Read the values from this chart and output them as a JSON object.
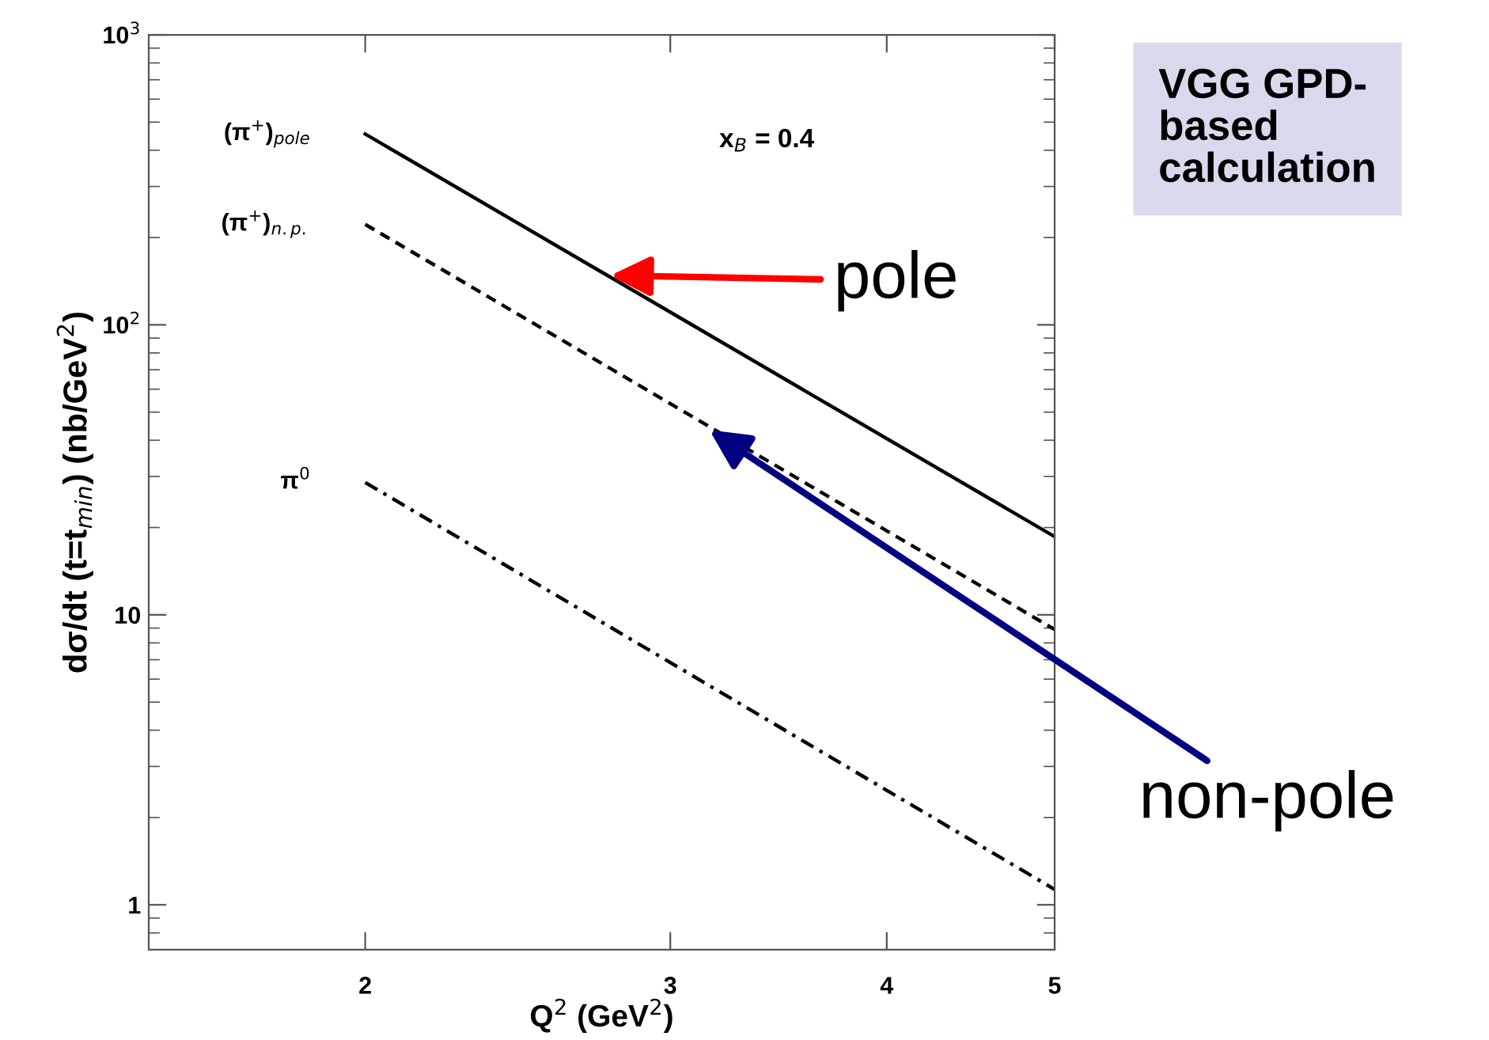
{
  "chart_data": {
    "type": "line",
    "xlabel": "Q$^{2}$ (GeV$^{2}$)",
    "ylabel": "dσ/dt (t=t$_{min}$) (nb/GeV$^{2}$)",
    "log": "xy",
    "xlim": [
      1.5,
      5
    ],
    "ylim": [
      0.7,
      1000
    ],
    "xticks": [
      2,
      3,
      4,
      5
    ],
    "yticks": [
      1,
      10,
      {
        "value": 100,
        "label": "10$^{2}$"
      },
      {
        "value": 1000,
        "label": "10$^{3}$"
      }
    ],
    "grid": false,
    "legend": false,
    "marker": "none",
    "x": [
      2,
      5
    ],
    "series": [
      {
        "name": "(π$^{+}$)$_{pole}$",
        "color": "#000000",
        "line_style": "solid",
        "values": [
          455,
          18.6
        ]
      },
      {
        "name": "(π$^{+}$)$_{n.p.}$",
        "color": "#000000",
        "line_style": "dashed",
        "values": [
          222,
          8.9
        ]
      },
      {
        "name": "π$^{0}$",
        "color": "#000000",
        "line_style": "dashdot",
        "values": [
          28.6,
          1.13
        ]
      }
    ],
    "annotations": [
      "x$_{B}$ = 0.4",
      "VGG GPD-\nbased\ncalculation",
      {
        "text": "pole",
        "x": 2.77,
        "y": 148
      },
      {
        "text": "non-pole",
        "x": 3.16,
        "y": 43.4
      }
    ]
  }
}
